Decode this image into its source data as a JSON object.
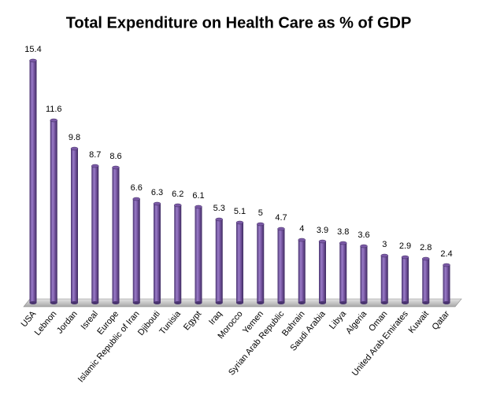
{
  "chart_data": {
    "type": "bar",
    "title": "Total Expenditure on Health Care as % of GDP",
    "categories": [
      "USA",
      "Lebnon",
      "Jordan",
      "Isreal",
      "Europe",
      "Islamic Republic of Iran",
      "Djibouti",
      "Tunisia",
      "Egypt",
      "Iraq",
      "Morocco",
      "Yemen",
      "Syrian Arab Republic",
      "Bahrain",
      "Saudi Arabia",
      "Libya",
      "Algeria",
      "Oman",
      "United Arab Emirates",
      "Kuwait",
      "Qatar"
    ],
    "values": [
      15.4,
      11.6,
      9.8,
      8.7,
      8.6,
      6.6,
      6.3,
      6.2,
      6.1,
      5.3,
      5.1,
      5,
      4.7,
      4,
      3.9,
      3.8,
      3.6,
      3,
      2.9,
      2.8,
      2.4
    ],
    "color": "#7b5aa6"
  }
}
